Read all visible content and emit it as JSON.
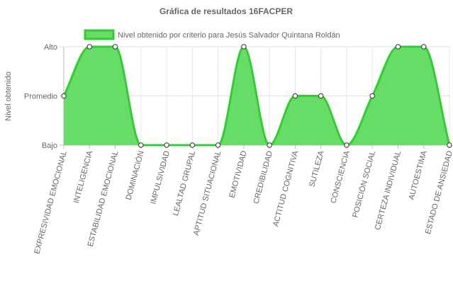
{
  "chart_data": {
    "type": "area",
    "title": "Gráfica de resultados 16FACPER",
    "ylabel": "Nivel obtenido",
    "xlabel": "",
    "legend_position": "top",
    "grid": true,
    "y_levels": [
      "Bajo",
      "Promedio",
      "Alto"
    ],
    "ylim": [
      0,
      2
    ],
    "categories": [
      "EXPRESIVIDAD EMOCIONAL",
      "INTELIGENCIA",
      "ESTABILIDAD EMOCIONAL",
      "DOMINACIÓN",
      "IMPULSIVIDAD",
      "LEALTAD GRUPAL",
      "APTITUD SITUACIONAL",
      "EMOTIVIDAD",
      "CREDIBILIDAD",
      "ACTITUD COGNITIVA",
      "SUTILEZA",
      "CONSCIENCIA",
      "POSICIÓN SOCIAL",
      "CERTEZA INDIVIDUAL",
      "AUTOESTIMA",
      "ESTADO DE ANSIEDAD"
    ],
    "series": [
      {
        "name": "Nivel obtenido por criterio para Jesús Salvador Quintana Roldán",
        "values": [
          1,
          2,
          2,
          0,
          0,
          0,
          0,
          2,
          0,
          1,
          1,
          0,
          1,
          2,
          2,
          0
        ],
        "color": "#32cd32",
        "fill": "#66dd66"
      }
    ]
  }
}
